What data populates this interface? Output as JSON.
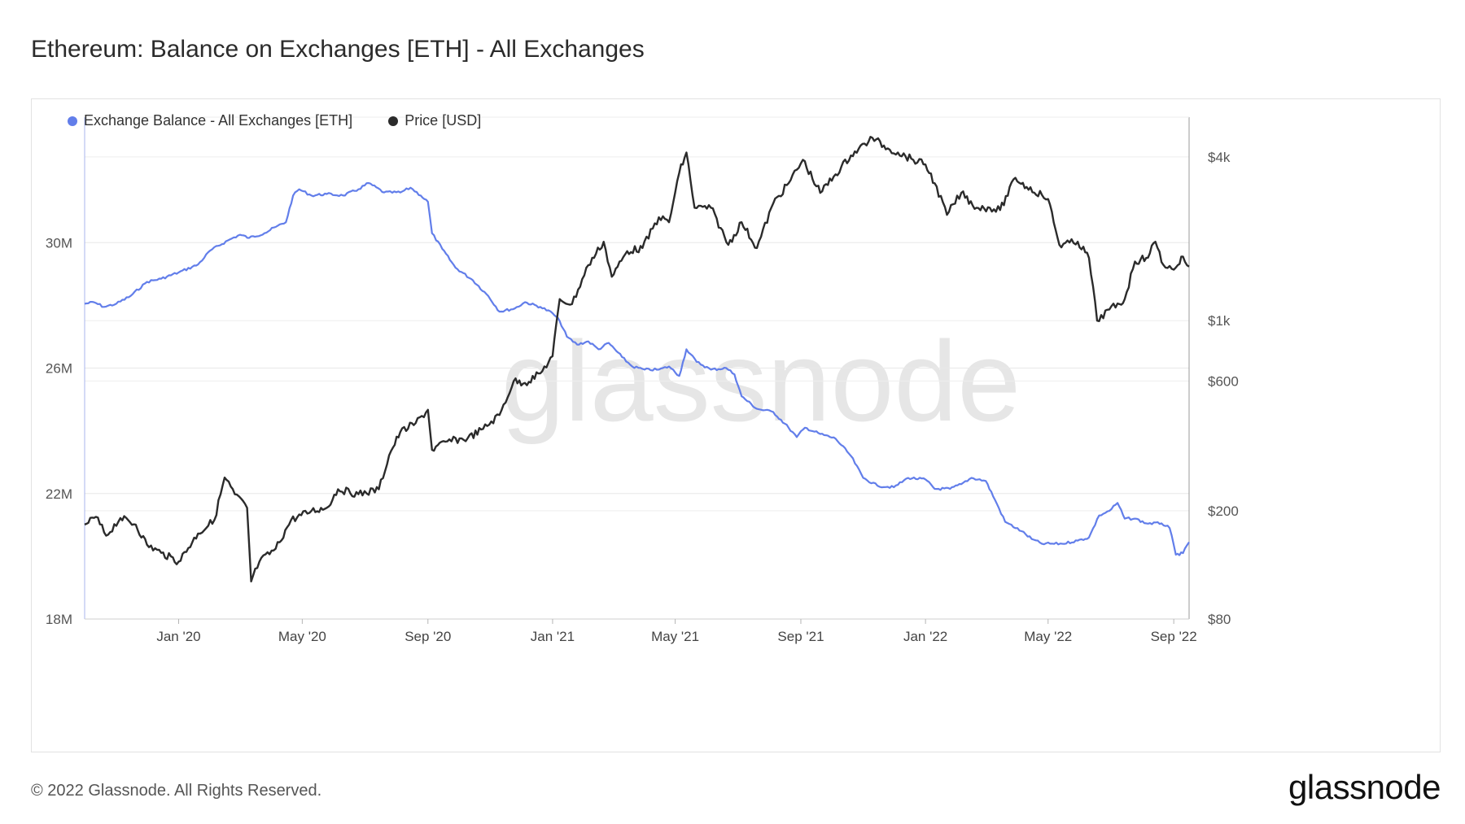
{
  "header": {
    "title": "Ethereum: Balance on Exchanges [ETH] - All Exchanges"
  },
  "legend": {
    "items": [
      {
        "label": "Exchange Balance - All Exchanges [ETH]",
        "color": "#627eea"
      },
      {
        "label": "Price [USD]",
        "color": "#2b2b2b"
      }
    ]
  },
  "watermark": "glassnode",
  "footer": {
    "copyright": "© 2022 Glassnode. All Rights Reserved.",
    "logo": "glassnode"
  },
  "chart_data": {
    "type": "line",
    "x_range": [
      "2019-10-01",
      "2022-09-16"
    ],
    "x_ticks": [
      {
        "date": "2020-01-01",
        "label": "Jan '20"
      },
      {
        "date": "2020-05-01",
        "label": "May '20"
      },
      {
        "date": "2020-09-01",
        "label": "Sep '20"
      },
      {
        "date": "2021-01-01",
        "label": "Jan '21"
      },
      {
        "date": "2021-05-01",
        "label": "May '21"
      },
      {
        "date": "2021-09-01",
        "label": "Sep '21"
      },
      {
        "date": "2022-01-01",
        "label": "Jan '22"
      },
      {
        "date": "2022-05-01",
        "label": "May '22"
      },
      {
        "date": "2022-09-01",
        "label": "Sep '22"
      }
    ],
    "y_left": {
      "scale": "linear",
      "range": [
        18000000,
        34000000
      ],
      "ticks": [
        {
          "value": 18000000,
          "label": "18M"
        },
        {
          "value": 22000000,
          "label": "22M"
        },
        {
          "value": 26000000,
          "label": "26M"
        },
        {
          "value": 30000000,
          "label": "30M"
        }
      ]
    },
    "y_right": {
      "scale": "log",
      "range": [
        80,
        5600
      ],
      "ticks": [
        {
          "value": 80,
          "label": "$80"
        },
        {
          "value": 200,
          "label": "$200"
        },
        {
          "value": 600,
          "label": "$600"
        },
        {
          "value": 1000,
          "label": "$1k"
        },
        {
          "value": 4000,
          "label": "$4k"
        }
      ]
    },
    "grid": true,
    "legend_position": "top-left",
    "series": [
      {
        "name": "Exchange Balance - All Exchanges [ETH]",
        "axis": "left",
        "color": "#627eea",
        "points": [
          [
            "2019-10-01",
            28050000.0
          ],
          [
            "2019-10-10",
            28100000.0
          ],
          [
            "2019-10-20",
            27950000.0
          ],
          [
            "2019-11-01",
            28050000.0
          ],
          [
            "2019-11-15",
            28300000.0
          ],
          [
            "2019-12-01",
            28750000.0
          ],
          [
            "2019-12-15",
            28850000.0
          ],
          [
            "2020-01-01",
            29050000.0
          ],
          [
            "2020-01-20",
            29300000.0
          ],
          [
            "2020-02-01",
            29750000.0
          ],
          [
            "2020-02-20",
            30100000.0
          ],
          [
            "2020-03-01",
            30250000.0
          ],
          [
            "2020-03-10",
            30150000.0
          ],
          [
            "2020-03-25",
            30300000.0
          ],
          [
            "2020-04-05",
            30500000.0
          ],
          [
            "2020-04-15",
            30650000.0
          ],
          [
            "2020-04-22",
            31500000.0
          ],
          [
            "2020-04-28",
            31700000.0
          ],
          [
            "2020-05-10",
            31500000.0
          ],
          [
            "2020-05-25",
            31550000.0
          ],
          [
            "2020-06-10",
            31500000.0
          ],
          [
            "2020-06-25",
            31700000.0
          ],
          [
            "2020-07-05",
            31900000.0
          ],
          [
            "2020-07-20",
            31600000.0
          ],
          [
            "2020-08-05",
            31600000.0
          ],
          [
            "2020-08-15",
            31750000.0
          ],
          [
            "2020-08-25",
            31500000.0
          ],
          [
            "2020-09-01",
            31300000.0
          ],
          [
            "2020-09-05",
            30300000.0
          ],
          [
            "2020-09-15",
            29800000.0
          ],
          [
            "2020-09-28",
            29200000.0
          ],
          [
            "2020-10-15",
            28800000.0
          ],
          [
            "2020-10-30",
            28300000.0
          ],
          [
            "2020-11-10",
            27800000.0
          ],
          [
            "2020-11-25",
            27900000.0
          ],
          [
            "2020-12-05",
            28100000.0
          ],
          [
            "2020-12-20",
            27950000.0
          ],
          [
            "2021-01-01",
            27750000.0
          ],
          [
            "2021-01-08",
            27500000.0
          ],
          [
            "2021-01-15",
            27000000.0
          ],
          [
            "2021-01-25",
            26750000.0
          ],
          [
            "2021-02-05",
            26850000.0
          ],
          [
            "2021-02-15",
            26600000.0
          ],
          [
            "2021-02-25",
            26800000.0
          ],
          [
            "2021-03-10",
            26350000.0
          ],
          [
            "2021-03-20",
            26050000.0
          ],
          [
            "2021-04-01",
            25950000.0
          ],
          [
            "2021-04-15",
            25950000.0
          ],
          [
            "2021-04-25",
            26050000.0
          ],
          [
            "2021-05-05",
            25750000.0
          ],
          [
            "2021-05-12",
            26600000.0
          ],
          [
            "2021-05-22",
            26200000.0
          ],
          [
            "2021-06-05",
            25950000.0
          ],
          [
            "2021-06-20",
            26000000.0
          ],
          [
            "2021-06-28",
            25800000.0
          ],
          [
            "2021-07-05",
            25100000.0
          ],
          [
            "2021-07-20",
            24700000.0
          ],
          [
            "2021-08-05",
            24600000.0
          ],
          [
            "2021-08-20",
            24100000.0
          ],
          [
            "2021-08-28",
            23800000.0
          ],
          [
            "2021-09-05",
            24100000.0
          ],
          [
            "2021-09-20",
            23900000.0
          ],
          [
            "2021-10-05",
            23750000.0
          ],
          [
            "2021-10-20",
            23200000.0
          ],
          [
            "2021-11-01",
            22500000.0
          ],
          [
            "2021-11-15",
            22250000.0
          ],
          [
            "2021-12-01",
            22200000.0
          ],
          [
            "2021-12-15",
            22500000.0
          ],
          [
            "2022-01-01",
            22450000.0
          ],
          [
            "2022-01-10",
            22150000.0
          ],
          [
            "2022-01-25",
            22150000.0
          ],
          [
            "2022-02-05",
            22300000.0
          ],
          [
            "2022-02-15",
            22500000.0
          ],
          [
            "2022-03-01",
            22400000.0
          ],
          [
            "2022-03-10",
            21800000.0
          ],
          [
            "2022-03-20",
            21100000.0
          ],
          [
            "2022-04-05",
            20800000.0
          ],
          [
            "2022-04-15",
            20550000.0
          ],
          [
            "2022-04-25",
            20400000.0
          ],
          [
            "2022-05-15",
            20400000.0
          ],
          [
            "2022-05-30",
            20500000.0
          ],
          [
            "2022-06-10",
            20600000.0
          ],
          [
            "2022-06-20",
            21300000.0
          ],
          [
            "2022-06-30",
            21450000.0
          ],
          [
            "2022-07-08",
            21700000.0
          ],
          [
            "2022-07-15",
            21200000.0
          ],
          [
            "2022-07-25",
            21200000.0
          ],
          [
            "2022-08-05",
            21050000.0
          ],
          [
            "2022-08-20",
            21050000.0
          ],
          [
            "2022-08-28",
            20900000.0
          ],
          [
            "2022-09-03",
            20050000.0
          ],
          [
            "2022-09-10",
            20100000.0
          ],
          [
            "2022-09-16",
            20450000.0
          ]
        ]
      },
      {
        "name": "Price [USD]",
        "axis": "right",
        "color": "#2b2b2b",
        "points": [
          [
            "2019-10-01",
            178
          ],
          [
            "2019-10-12",
            190
          ],
          [
            "2019-10-22",
            162
          ],
          [
            "2019-11-05",
            188
          ],
          [
            "2019-11-20",
            178
          ],
          [
            "2019-12-01",
            150
          ],
          [
            "2019-12-15",
            140
          ],
          [
            "2020-01-01",
            130
          ],
          [
            "2020-01-20",
            165
          ],
          [
            "2020-02-05",
            185
          ],
          [
            "2020-02-15",
            265
          ],
          [
            "2020-02-25",
            230
          ],
          [
            "2020-03-08",
            205
          ],
          [
            "2020-03-12",
            110
          ],
          [
            "2020-03-20",
            130
          ],
          [
            "2020-04-05",
            145
          ],
          [
            "2020-04-20",
            185
          ],
          [
            "2020-05-10",
            200
          ],
          [
            "2020-05-25",
            205
          ],
          [
            "2020-06-05",
            240
          ],
          [
            "2020-06-25",
            230
          ],
          [
            "2020-07-15",
            240
          ],
          [
            "2020-07-25",
            320
          ],
          [
            "2020-08-05",
            390
          ],
          [
            "2020-08-20",
            420
          ],
          [
            "2020-09-01",
            470
          ],
          [
            "2020-09-05",
            335
          ],
          [
            "2020-09-20",
            360
          ],
          [
            "2020-10-10",
            370
          ],
          [
            "2020-10-25",
            400
          ],
          [
            "2020-11-10",
            450
          ],
          [
            "2020-11-24",
            600
          ],
          [
            "2020-12-05",
            590
          ],
          [
            "2020-12-20",
            640
          ],
          [
            "2021-01-01",
            740
          ],
          [
            "2021-01-08",
            1200
          ],
          [
            "2021-01-20",
            1150
          ],
          [
            "2021-02-05",
            1600
          ],
          [
            "2021-02-20",
            1950
          ],
          [
            "2021-02-28",
            1450
          ],
          [
            "2021-03-15",
            1800
          ],
          [
            "2021-03-30",
            1850
          ],
          [
            "2021-04-15",
            2400
          ],
          [
            "2021-04-25",
            2300
          ],
          [
            "2021-05-05",
            3500
          ],
          [
            "2021-05-12",
            4150
          ],
          [
            "2021-05-20",
            2600
          ],
          [
            "2021-06-05",
            2600
          ],
          [
            "2021-06-22",
            1900
          ],
          [
            "2021-07-05",
            2300
          ],
          [
            "2021-07-20",
            1850
          ],
          [
            "2021-08-05",
            2700
          ],
          [
            "2021-08-20",
            3200
          ],
          [
            "2021-09-03",
            3900
          ],
          [
            "2021-09-20",
            2950
          ],
          [
            "2021-10-05",
            3450
          ],
          [
            "2021-10-20",
            4050
          ],
          [
            "2021-11-10",
            4700
          ],
          [
            "2021-11-25",
            4300
          ],
          [
            "2021-12-05",
            4150
          ],
          [
            "2021-12-20",
            3900
          ],
          [
            "2022-01-01",
            3750
          ],
          [
            "2022-01-10",
            3200
          ],
          [
            "2022-01-22",
            2450
          ],
          [
            "2022-02-05",
            2950
          ],
          [
            "2022-02-20",
            2600
          ],
          [
            "2022-03-05",
            2600
          ],
          [
            "2022-03-15",
            2550
          ],
          [
            "2022-03-30",
            3350
          ],
          [
            "2022-04-10",
            3100
          ],
          [
            "2022-04-25",
            2900
          ],
          [
            "2022-05-01",
            2800
          ],
          [
            "2022-05-12",
            1900
          ],
          [
            "2022-05-30",
            1950
          ],
          [
            "2022-06-10",
            1700
          ],
          [
            "2022-06-18",
            1000
          ],
          [
            "2022-06-30",
            1100
          ],
          [
            "2022-07-10",
            1150
          ],
          [
            "2022-07-15",
            1200
          ],
          [
            "2022-07-25",
            1650
          ],
          [
            "2022-08-05",
            1700
          ],
          [
            "2022-08-14",
            1950
          ],
          [
            "2022-08-22",
            1600
          ],
          [
            "2022-08-30",
            1550
          ],
          [
            "2022-09-05",
            1600
          ],
          [
            "2022-09-10",
            1720
          ],
          [
            "2022-09-16",
            1580
          ]
        ]
      }
    ]
  }
}
